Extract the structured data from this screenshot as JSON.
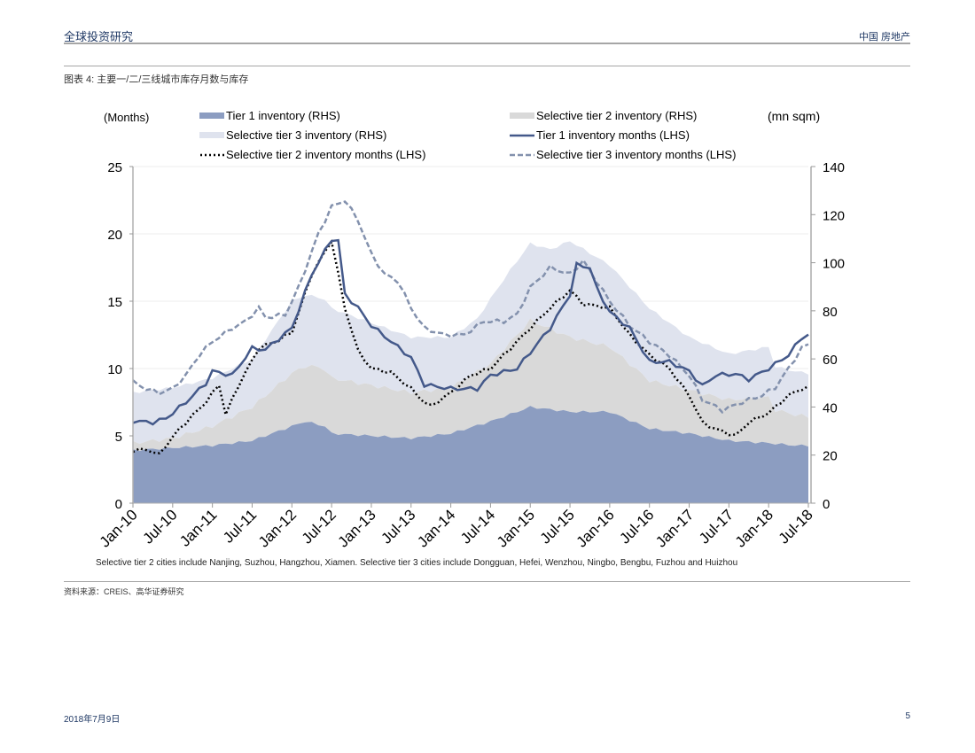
{
  "header": {
    "left_title": "全球投资研究",
    "right_title": "中国 房地产"
  },
  "figure_title": "图表 4: 主要一/二/三线城市库存月数与库存",
  "note": "Selective tier 2 cities include Nanjing, Suzhou, Hangzhou, Xiamen. Selective tier 3 cities include Dongguan, Hefei, Wenzhou, Ningbo, Bengbu, Fuzhou and Huizhou",
  "source": "资料来源：CREIS、高华证券研究",
  "footer": {
    "date": "2018年7月9日",
    "page": "5"
  },
  "colors": {
    "tier1_area": "#8c9dc1",
    "tier2_area": "#d9d9d9",
    "tier3_area": "#dfe3ee",
    "tier1_line": "#44598a",
    "tier2_line": "#000000",
    "tier3_line": "#8391ad"
  },
  "chart_data": {
    "type": "area+line",
    "title": "",
    "left_axis_label": "(Months)",
    "right_axis_label": "(mn sqm)",
    "left_ylim": [
      0,
      25
    ],
    "right_ylim": [
      0,
      140
    ],
    "left_ticks": [
      "0",
      "5",
      "10",
      "15",
      "20",
      "25"
    ],
    "right_ticks": [
      "0",
      "20",
      "40",
      "60",
      "80",
      "100",
      "120",
      "140"
    ],
    "x_tick_labels": [
      "Jan-10",
      "Jul-10",
      "Jan-11",
      "Jul-11",
      "Jan-12",
      "Jul-12",
      "Jan-13",
      "Jul-13",
      "Jan-14",
      "Jul-14",
      "Jan-15",
      "Jul-15",
      "Jan-16",
      "Jul-16",
      "Jan-17",
      "Jul-17",
      "Jan-18",
      "Jul-18"
    ],
    "x_start": "Jan-10",
    "x_end": "Jul-18",
    "frequency": "monthly",
    "legend": [
      {
        "label": "Tier 1 inventory (RHS)",
        "style": "area",
        "series": "tier1_inventory"
      },
      {
        "label": "Selective tier 2 inventory (RHS)",
        "style": "area",
        "series": "tier2_inventory"
      },
      {
        "label": "Selective tier 3 inventory (RHS)",
        "style": "area",
        "series": "tier3_inventory"
      },
      {
        "label": "Tier 1 inventory months (LHS)",
        "style": "solid",
        "series": "tier1_months"
      },
      {
        "label": "Selective tier 2 inventory months (LHS)",
        "style": "dotted",
        "series": "tier2_months"
      },
      {
        "label": "Selective tier 3 inventory months (LHS)",
        "style": "dashed",
        "series": "tier3_months"
      }
    ],
    "series": [
      {
        "name": "tier1_inventory",
        "axis": "right",
        "stacked": true,
        "anchors": [
          [
            0,
            22
          ],
          [
            6,
            23
          ],
          [
            12,
            24
          ],
          [
            18,
            26
          ],
          [
            24,
            32
          ],
          [
            26,
            34
          ],
          [
            29,
            32
          ],
          [
            30,
            29
          ],
          [
            36,
            28
          ],
          [
            42,
            27
          ],
          [
            48,
            29
          ],
          [
            54,
            34
          ],
          [
            60,
            40
          ],
          [
            66,
            38
          ],
          [
            72,
            38
          ],
          [
            78,
            31
          ],
          [
            84,
            29
          ],
          [
            90,
            26
          ],
          [
            96,
            25
          ],
          [
            100,
            24
          ],
          [
            102,
            24
          ]
        ]
      },
      {
        "name": "tier2_inventory",
        "axis": "right",
        "stacked": true,
        "anchors": [
          [
            0,
            3
          ],
          [
            6,
            4
          ],
          [
            12,
            8
          ],
          [
            18,
            14
          ],
          [
            24,
            22
          ],
          [
            28,
            24
          ],
          [
            30,
            23
          ],
          [
            36,
            21
          ],
          [
            42,
            19
          ],
          [
            48,
            19
          ],
          [
            54,
            24
          ],
          [
            60,
            36
          ],
          [
            66,
            31
          ],
          [
            72,
            27
          ],
          [
            78,
            20
          ],
          [
            84,
            18
          ],
          [
            90,
            17
          ],
          [
            96,
            19
          ],
          [
            97,
            14
          ],
          [
            102,
            12
          ]
        ]
      },
      {
        "name": "tier3_inventory",
        "axis": "right",
        "stacked": true,
        "anchors": [
          [
            0,
            21
          ],
          [
            6,
            21
          ],
          [
            12,
            20
          ],
          [
            18,
            20
          ],
          [
            24,
            30
          ],
          [
            28,
            29
          ],
          [
            30,
            29
          ],
          [
            36,
            26
          ],
          [
            42,
            23
          ],
          [
            48,
            21
          ],
          [
            52,
            22
          ],
          [
            54,
            27
          ],
          [
            57,
            30
          ],
          [
            60,
            32
          ],
          [
            63,
            33
          ],
          [
            66,
            40
          ],
          [
            72,
            34
          ],
          [
            78,
            30
          ],
          [
            84,
            22
          ],
          [
            90,
            19
          ],
          [
            96,
            21
          ],
          [
            97,
            18
          ],
          [
            102,
            18
          ]
        ]
      },
      {
        "name": "tier1_months",
        "axis": "left",
        "anchors": [
          [
            0,
            6.1
          ],
          [
            3,
            6.0
          ],
          [
            5,
            6.3
          ],
          [
            8,
            7.5
          ],
          [
            11,
            8.9
          ],
          [
            12,
            9.8
          ],
          [
            15,
            9.5
          ],
          [
            18,
            11.5
          ],
          [
            20,
            11.4
          ],
          [
            24,
            13.0
          ],
          [
            27,
            17.0
          ],
          [
            30,
            19.6
          ],
          [
            31,
            19.5
          ],
          [
            32,
            15.5
          ],
          [
            34,
            14.5
          ],
          [
            36,
            13.2
          ],
          [
            39,
            12.0
          ],
          [
            42,
            10.8
          ],
          [
            44,
            8.8
          ],
          [
            48,
            8.5
          ],
          [
            52,
            8.5
          ],
          [
            54,
            9.5
          ],
          [
            58,
            10.0
          ],
          [
            60,
            11.2
          ],
          [
            63,
            13.0
          ],
          [
            66,
            15.5
          ],
          [
            67,
            17.7
          ],
          [
            69,
            17.5
          ],
          [
            70,
            16.0
          ],
          [
            72,
            14.2
          ],
          [
            75,
            13.0
          ],
          [
            78,
            10.5
          ],
          [
            81,
            10.5
          ],
          [
            84,
            9.8
          ],
          [
            86,
            8.7
          ],
          [
            88,
            9.5
          ],
          [
            91,
            9.6
          ],
          [
            93,
            9.2
          ],
          [
            96,
            10.0
          ],
          [
            99,
            11.0
          ],
          [
            101,
            12.3
          ],
          [
            102,
            12.5
          ]
        ]
      },
      {
        "name": "tier2_months",
        "axis": "left",
        "anchors": [
          [
            0,
            3.9
          ],
          [
            2,
            4.0
          ],
          [
            4,
            3.6
          ],
          [
            5,
            4.3
          ],
          [
            7,
            5.5
          ],
          [
            9,
            6.5
          ],
          [
            11,
            7.5
          ],
          [
            13,
            8.8
          ],
          [
            14,
            6.6
          ],
          [
            16,
            8.8
          ],
          [
            19,
            11.5
          ],
          [
            22,
            12.1
          ],
          [
            24,
            12.7
          ],
          [
            27,
            17.0
          ],
          [
            30,
            19.5
          ],
          [
            32,
            14.5
          ],
          [
            34,
            11.3
          ],
          [
            36,
            10.0
          ],
          [
            39,
            9.7
          ],
          [
            42,
            8.5
          ],
          [
            44,
            7.5
          ],
          [
            45,
            7.2
          ],
          [
            48,
            8.2
          ],
          [
            51,
            9.5
          ],
          [
            54,
            10.0
          ],
          [
            57,
            11.5
          ],
          [
            60,
            13.0
          ],
          [
            63,
            14.5
          ],
          [
            66,
            15.8
          ],
          [
            68,
            14.8
          ],
          [
            72,
            14.5
          ],
          [
            75,
            12.5
          ],
          [
            78,
            11.0
          ],
          [
            81,
            10.0
          ],
          [
            84,
            8.0
          ],
          [
            86,
            6.0
          ],
          [
            88,
            5.5
          ],
          [
            91,
            5.0
          ],
          [
            93,
            6.0
          ],
          [
            96,
            6.7
          ],
          [
            99,
            8.0
          ],
          [
            101,
            8.5
          ],
          [
            102,
            8.6
          ]
        ]
      },
      {
        "name": "tier3_months",
        "axis": "left",
        "anchors": [
          [
            0,
            9.0
          ],
          [
            2,
            8.5
          ],
          [
            4,
            8.2
          ],
          [
            6,
            8.5
          ],
          [
            8,
            9.5
          ],
          [
            10,
            11.0
          ],
          [
            12,
            12.0
          ],
          [
            15,
            13.0
          ],
          [
            17,
            13.5
          ],
          [
            19,
            14.5
          ],
          [
            20,
            13.8
          ],
          [
            23,
            14.0
          ],
          [
            25,
            16.0
          ],
          [
            28,
            20.0
          ],
          [
            30,
            22.0
          ],
          [
            32,
            22.5
          ],
          [
            34,
            21.0
          ],
          [
            36,
            18.5
          ],
          [
            38,
            17.0
          ],
          [
            40,
            16.5
          ],
          [
            42,
            14.5
          ],
          [
            44,
            13.0
          ],
          [
            47,
            12.5
          ],
          [
            50,
            12.5
          ],
          [
            53,
            13.5
          ],
          [
            56,
            13.5
          ],
          [
            58,
            14.0
          ],
          [
            60,
            16.0
          ],
          [
            63,
            17.5
          ],
          [
            66,
            17.0
          ],
          [
            68,
            18.0
          ],
          [
            70,
            16.5
          ],
          [
            72,
            15.0
          ],
          [
            75,
            13.2
          ],
          [
            78,
            12.0
          ],
          [
            81,
            11.0
          ],
          [
            84,
            9.5
          ],
          [
            86,
            7.7
          ],
          [
            89,
            6.9
          ],
          [
            92,
            7.5
          ],
          [
            95,
            8.0
          ],
          [
            97,
            8.6
          ],
          [
            99,
            10.0
          ],
          [
            101,
            11.5
          ],
          [
            102,
            11.8
          ]
        ]
      }
    ]
  }
}
